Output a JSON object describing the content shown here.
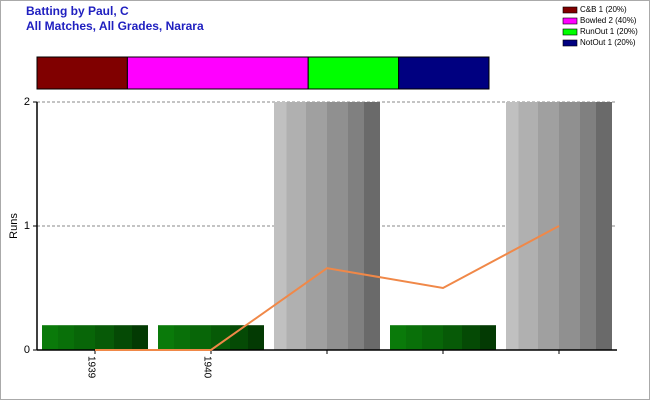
{
  "chart_data": {
    "type": "bar",
    "title": "Batting by Paul, C",
    "subtitle": "All Matches, All Grades, Narara",
    "y_label": "Runs",
    "legend": [
      {
        "label": "C&B 1 (20%)",
        "color": "#800000",
        "value": 1
      },
      {
        "label": "Bowled 2 (40%)",
        "color": "#ff00ff",
        "value": 2
      },
      {
        "label": "RunOut 1 (20%)",
        "color": "#00ff00",
        "value": 1
      },
      {
        "label": "NotOut 1 (20%)",
        "color": "#000080",
        "value": 1
      }
    ],
    "categories": [
      "1939",
      "1940",
      null,
      null,
      null
    ],
    "bars": {
      "values": [
        0.2,
        0.2,
        2,
        0.2,
        2
      ],
      "colors": [
        "green",
        "green",
        "gray",
        "green",
        "gray"
      ]
    },
    "line": {
      "values": [
        0,
        0,
        0.66,
        0.5,
        1
      ],
      "color": "#f08848"
    },
    "ylim": [
      0,
      2
    ],
    "yticks": [
      0,
      1,
      2
    ],
    "grid": true
  }
}
